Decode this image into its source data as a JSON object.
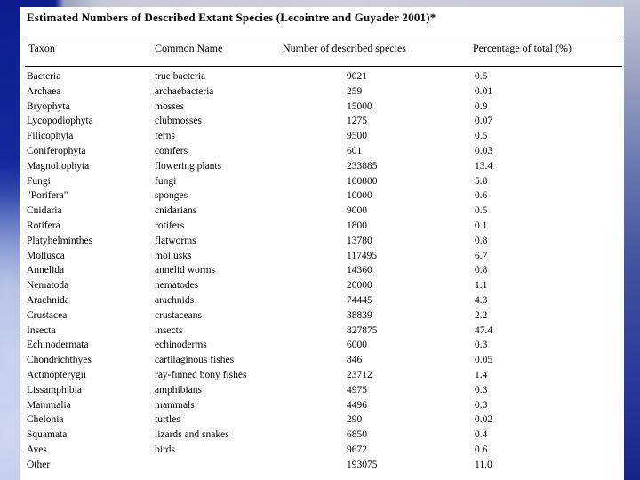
{
  "slide": {
    "title": "Estimated Numbers of Described Extant Species (Lecointre and Guyader 2001)*"
  },
  "table": {
    "headers": [
      "Taxon",
      "Common Name",
      "Number of described species",
      "Percentage of total (%)"
    ],
    "rows": [
      {
        "taxon": "Bacteria",
        "common": "true bacteria",
        "count": "9021",
        "pct": "0.5"
      },
      {
        "taxon": "Archaea",
        "common": "archaebacteria",
        "count": "259",
        "pct": "0.01"
      },
      {
        "taxon": "Bryophyta",
        "common": "mosses",
        "count": "15000",
        "pct": "0.9"
      },
      {
        "taxon": "Lycopodiophyta",
        "common": "clubmosses",
        "count": "1275",
        "pct": "0.07"
      },
      {
        "taxon": "Filicophyta",
        "common": "ferns",
        "count": "9500",
        "pct": "0.5"
      },
      {
        "taxon": "Coniferophyta",
        "common": "conifers",
        "count": "601",
        "pct": "0.03"
      },
      {
        "taxon": "Magnoliophyta",
        "common": "flowering plants",
        "count": "233885",
        "pct": "13.4"
      },
      {
        "taxon": "Fungi",
        "common": "fungi",
        "count": "100800",
        "pct": "5.8"
      },
      {
        "taxon": "\"Porifera\"",
        "common": "sponges",
        "count": "10000",
        "pct": "0.6"
      },
      {
        "taxon": "Cnidaria",
        "common": "cnidarians",
        "count": "9000",
        "pct": "0.5"
      },
      {
        "taxon": "Rotifera",
        "common": "rotifers",
        "count": "1800",
        "pct": "0.1"
      },
      {
        "taxon": "Platyhelminthes",
        "common": "flatworms",
        "count": "13780",
        "pct": "0.8"
      },
      {
        "taxon": "Mollusca",
        "common": "mollusks",
        "count": "117495",
        "pct": "6.7"
      },
      {
        "taxon": "Annelida",
        "common": "annelid worms",
        "count": "14360",
        "pct": "0.8"
      },
      {
        "taxon": "Nematoda",
        "common": "nematodes",
        "count": "20000",
        "pct": "1.1"
      },
      {
        "taxon": "Arachnida",
        "common": "arachnids",
        "count": "74445",
        "pct": "4.3"
      },
      {
        "taxon": "Crustacea",
        "common": "crustaceans",
        "count": "38839",
        "pct": "2.2"
      },
      {
        "taxon": "Insecta",
        "common": "insects",
        "count": "827875",
        "pct": "47.4"
      },
      {
        "taxon": "Echinodermata",
        "common": "echinoderms",
        "count": "6000",
        "pct": "0.3"
      },
      {
        "taxon": "Chondrichthyes",
        "common": "cartilaginous fishes",
        "count": "846",
        "pct": "0.05"
      },
      {
        "taxon": "Actinopterygii",
        "common": "ray-finned bony fishes",
        "count": "23712",
        "pct": "1.4"
      },
      {
        "taxon": "Lissamphibia",
        "common": "amphibians",
        "count": "4975",
        "pct": "0.3"
      },
      {
        "taxon": "Mammalia",
        "common": "mammals",
        "count": "4496",
        "pct": "0.3"
      },
      {
        "taxon": "Chelonia",
        "common": "turtles",
        "count": "290",
        "pct": "0.02"
      },
      {
        "taxon": "Squamata",
        "common": "lizards and snakes",
        "count": "6850",
        "pct": "0.4"
      },
      {
        "taxon": "Aves",
        "common": "birds",
        "count": "9672",
        "pct": "0.6"
      },
      {
        "taxon": "Other",
        "common": "",
        "count": "193075",
        "pct": "11.0"
      }
    ]
  },
  "colors": {
    "panel_background": "#ffffff",
    "text": "#000000",
    "sky_dark_navy": "#0c1d8e",
    "sky_mid_blue": "#2b4ab3",
    "sky_light_grey": "#c6cad6"
  }
}
